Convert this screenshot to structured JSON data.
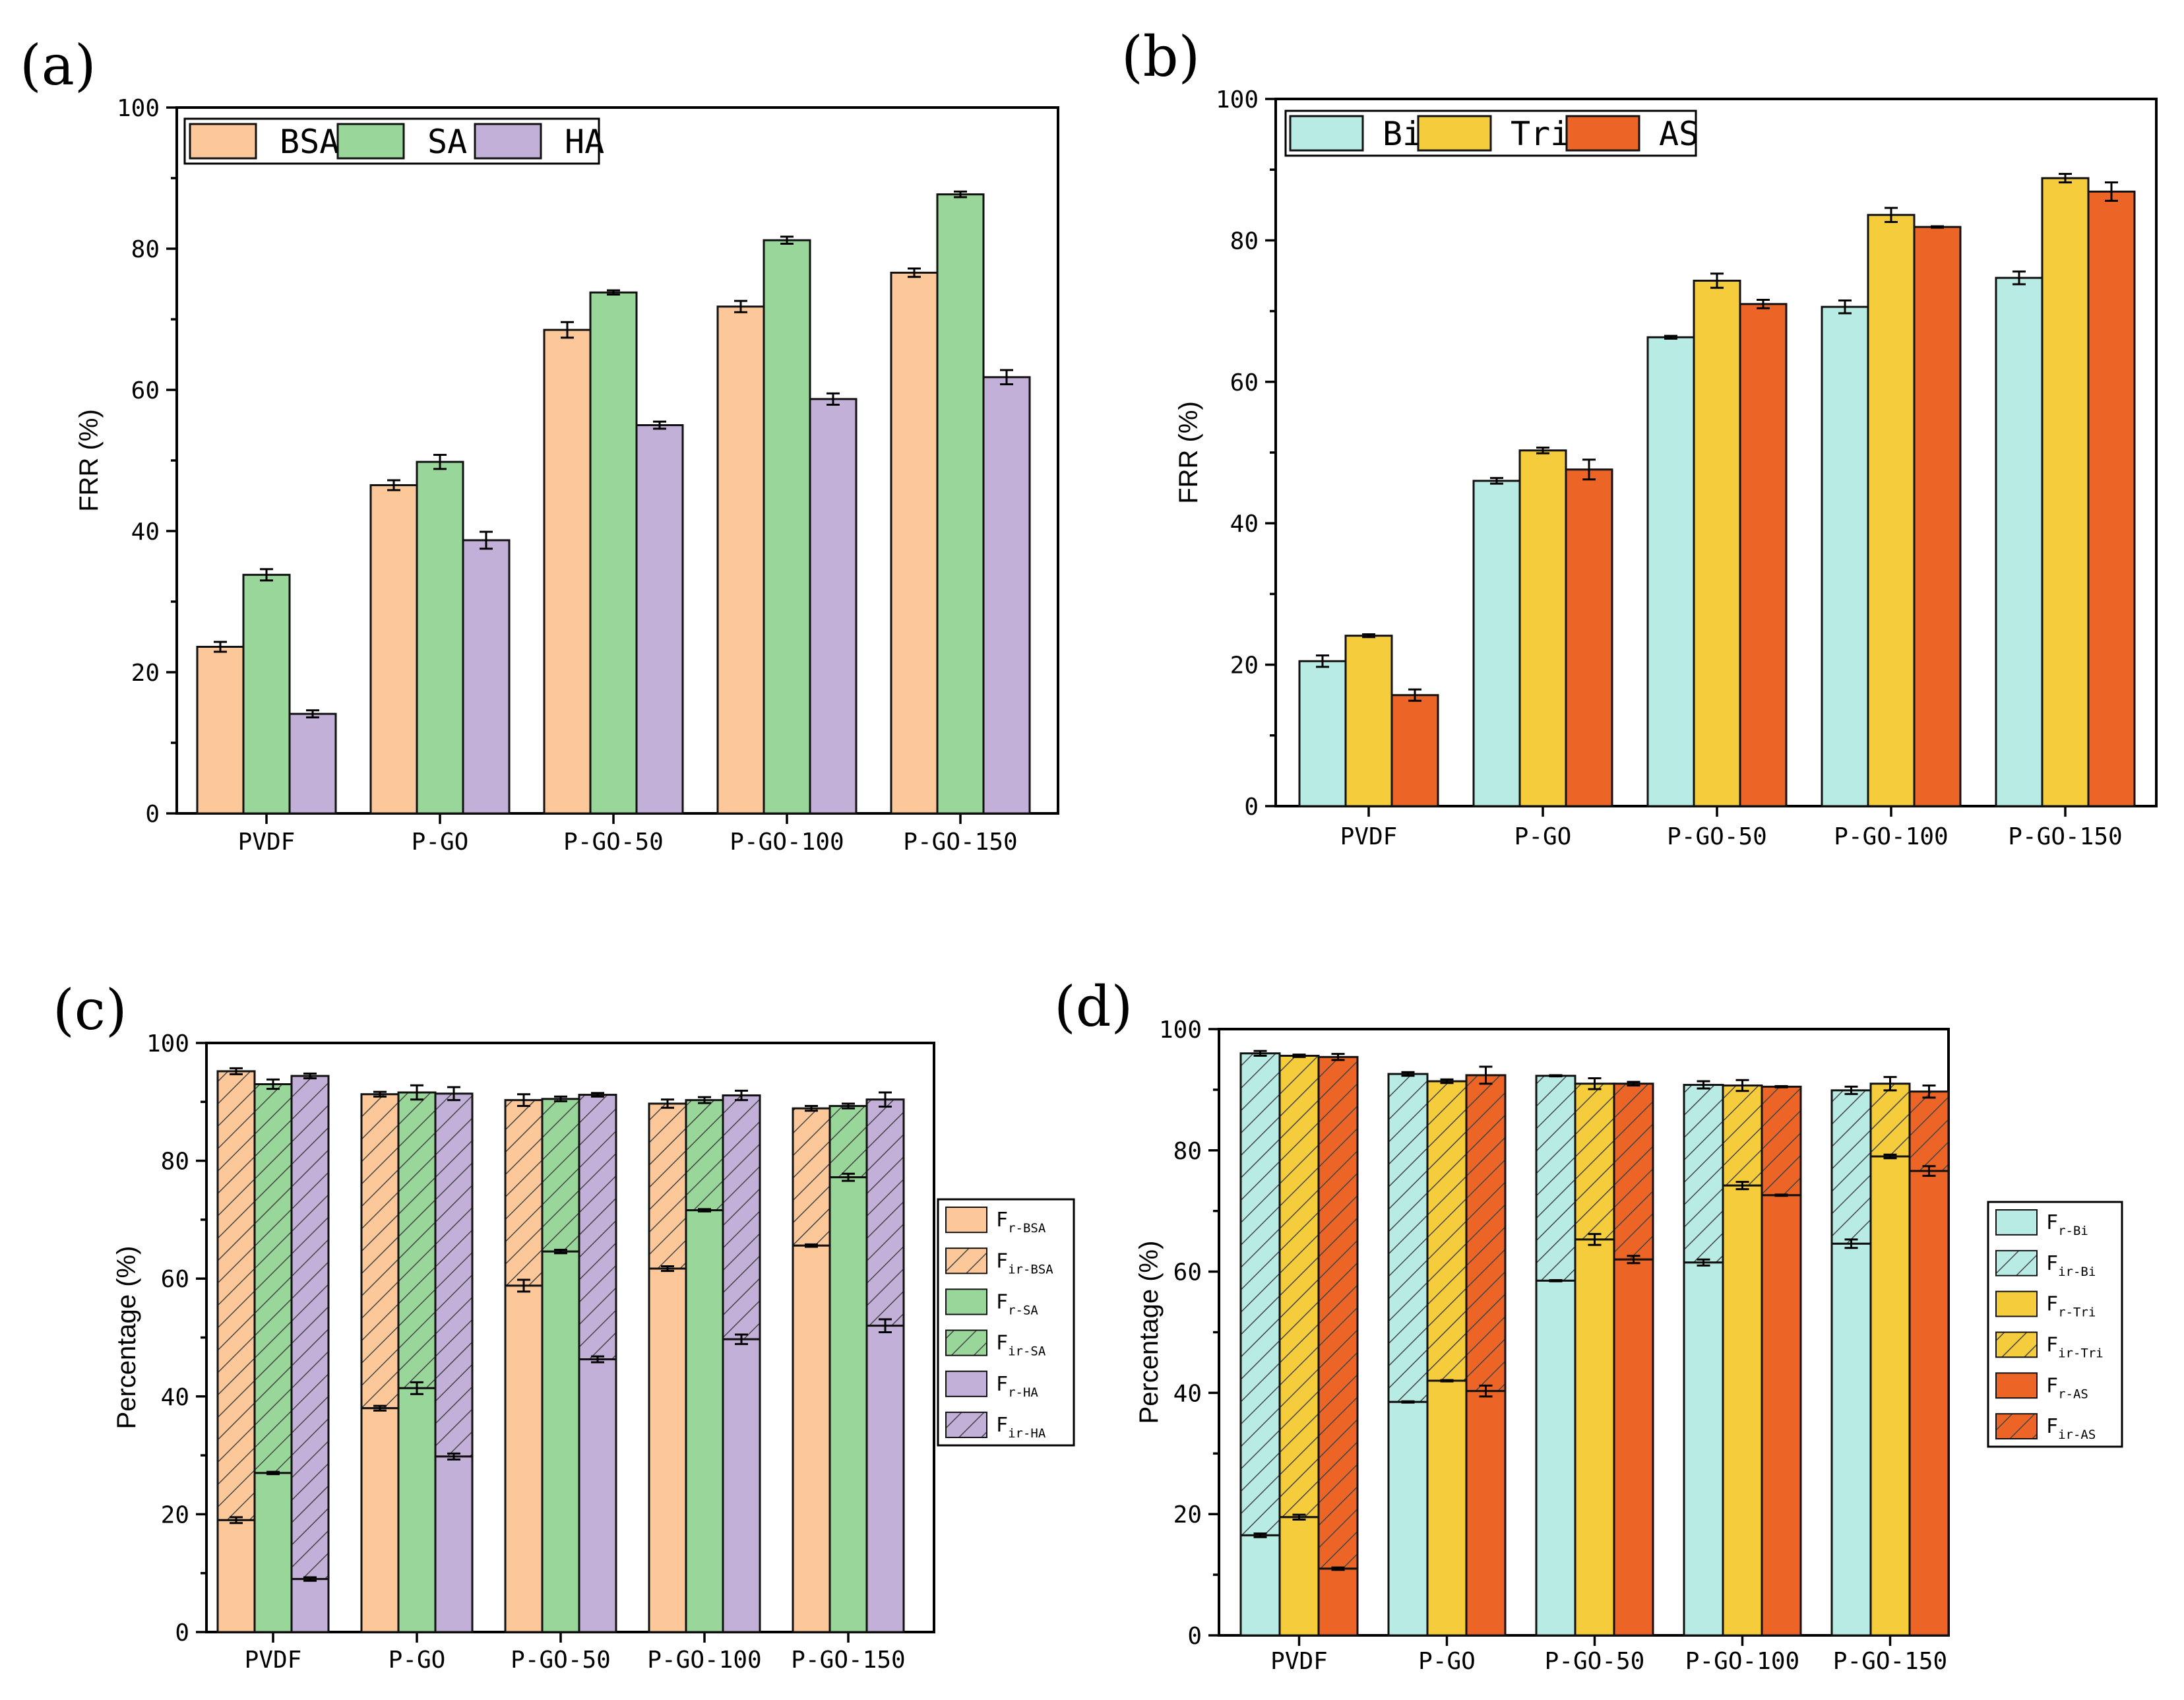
{
  "colors": {
    "BSA": "#fcc899",
    "SA": "#99d699",
    "HA": "#c3b0d8",
    "Bi": "#b8ebe3",
    "Tri": "#f5cd3c",
    "AS": "#ec6426"
  },
  "chart_data": [
    {
      "id": "a",
      "panel_label": "(a)",
      "type": "bar",
      "ylabel": "FRR (%)",
      "ylim": [
        0,
        100
      ],
      "yticks": [
        "0",
        "20",
        "40",
        "60",
        "80",
        "100"
      ],
      "categories": [
        "PVDF",
        "P-GO",
        "P-GO-50",
        "P-GO-100",
        "P-GO-150"
      ],
      "legend": [
        "BSA",
        "SA",
        "HA"
      ],
      "series": [
        {
          "name": "BSA",
          "color_key": "BSA",
          "values": [
            23.6,
            46.5,
            68.5,
            71.8,
            76.6
          ],
          "errors": [
            0.7,
            0.7,
            1.1,
            0.8,
            0.6
          ]
        },
        {
          "name": "SA",
          "color_key": "SA",
          "values": [
            33.8,
            49.8,
            73.8,
            81.2,
            87.7
          ],
          "errors": [
            0.8,
            1.0,
            0.3,
            0.5,
            0.4
          ]
        },
        {
          "name": "HA",
          "color_key": "HA",
          "values": [
            14.1,
            38.7,
            55.0,
            58.7,
            61.8
          ],
          "errors": [
            0.5,
            1.2,
            0.5,
            0.8,
            1.0
          ]
        }
      ]
    },
    {
      "id": "b",
      "panel_label": "(b)",
      "type": "bar",
      "ylabel": "FRR (%)",
      "ylim": [
        0,
        100
      ],
      "yticks": [
        "0",
        "20",
        "40",
        "60",
        "80",
        "100"
      ],
      "categories": [
        "PVDF",
        "P-GO",
        "P-GO-50",
        "P-GO-100",
        "P-GO-150"
      ],
      "legend": [
        "Bi",
        "Tri",
        "AS"
      ],
      "series": [
        {
          "name": "Bi",
          "color_key": "Bi",
          "values": [
            20.5,
            46.0,
            66.3,
            70.6,
            74.7
          ],
          "errors": [
            0.8,
            0.4,
            0.2,
            0.9,
            0.9
          ]
        },
        {
          "name": "Tri",
          "color_key": "Tri",
          "values": [
            24.1,
            50.3,
            74.3,
            83.6,
            88.8
          ],
          "errors": [
            0.2,
            0.4,
            1.0,
            1.0,
            0.6
          ]
        },
        {
          "name": "AS",
          "color_key": "AS",
          "values": [
            15.7,
            47.6,
            71.0,
            81.9,
            86.9
          ],
          "errors": [
            0.8,
            1.4,
            0.6,
            0.1,
            1.3
          ]
        }
      ]
    },
    {
      "id": "c",
      "panel_label": "(c)",
      "type": "stacked-bar",
      "ylabel": "Percentage (%)",
      "ylim": [
        0,
        100
      ],
      "yticks": [
        "0",
        "20",
        "40",
        "60",
        "80",
        "100"
      ],
      "categories": [
        "PVDF",
        "P-GO",
        "P-GO-50",
        "P-GO-100",
        "P-GO-150"
      ],
      "legend": [
        {
          "main": "F",
          "sub": "r-BSA",
          "color_key": "BSA",
          "hatch": false
        },
        {
          "main": "F",
          "sub": "ir-BSA",
          "color_key": "BSA",
          "hatch": true
        },
        {
          "main": "F",
          "sub": "r-SA",
          "color_key": "SA",
          "hatch": false
        },
        {
          "main": "F",
          "sub": "ir-SA",
          "color_key": "SA",
          "hatch": true
        },
        {
          "main": "F",
          "sub": "r-HA",
          "color_key": "HA",
          "hatch": false
        },
        {
          "main": "F",
          "sub": "ir-HA",
          "color_key": "HA",
          "hatch": true
        }
      ],
      "series": [
        {
          "name": "BSA",
          "color_key": "BSA",
          "fr": [
            19.0,
            38.0,
            58.8,
            61.7,
            65.6
          ],
          "fr_err": [
            0.5,
            0.4,
            1.0,
            0.4,
            0.2
          ],
          "total": [
            95.2,
            91.3,
            90.3,
            89.7,
            88.9
          ],
          "total_err": [
            0.5,
            0.4,
            1.0,
            0.7,
            0.4
          ]
        },
        {
          "name": "SA",
          "color_key": "SA",
          "fr": [
            27.0,
            41.4,
            64.6,
            71.6,
            77.2
          ],
          "fr_err": [
            0.2,
            1.0,
            0.3,
            0.2,
            0.6
          ],
          "total": [
            93.0,
            91.6,
            90.5,
            90.3,
            89.3
          ],
          "total_err": [
            0.8,
            1.2,
            0.4,
            0.5,
            0.4
          ]
        },
        {
          "name": "HA",
          "color_key": "HA",
          "fr": [
            9.0,
            29.8,
            46.3,
            49.7,
            52.0
          ],
          "fr_err": [
            0.3,
            0.5,
            0.5,
            0.8,
            1.1
          ],
          "total": [
            94.4,
            91.4,
            91.2,
            91.1,
            90.4
          ],
          "total_err": [
            0.4,
            1.1,
            0.3,
            0.8,
            1.2
          ]
        }
      ]
    },
    {
      "id": "d",
      "panel_label": "(d)",
      "type": "stacked-bar",
      "ylabel": "Percentage (%)",
      "ylim": [
        0,
        100
      ],
      "yticks": [
        "0",
        "20",
        "40",
        "60",
        "80",
        "100"
      ],
      "categories": [
        "PVDF",
        "P-GO",
        "P-GO-50",
        "P-GO-100",
        "P-GO-150"
      ],
      "legend": [
        {
          "main": "F",
          "sub": "r-Bi",
          "color_key": "Bi",
          "hatch": false
        },
        {
          "main": "F",
          "sub": "ir-Bi",
          "color_key": "Bi",
          "hatch": true
        },
        {
          "main": "F",
          "sub": "r-Tri",
          "color_key": "Tri",
          "hatch": false
        },
        {
          "main": "F",
          "sub": "ir-Tri",
          "color_key": "Tri",
          "hatch": true
        },
        {
          "main": "F",
          "sub": "r-AS",
          "color_key": "AS",
          "hatch": false
        },
        {
          "main": "F",
          "sub": "ir-AS",
          "color_key": "AS",
          "hatch": true
        }
      ],
      "series": [
        {
          "name": "Bi",
          "color_key": "Bi",
          "fr": [
            16.5,
            38.5,
            58.5,
            61.5,
            64.6
          ],
          "fr_err": [
            0.3,
            0.1,
            0.1,
            0.5,
            0.7
          ],
          "total": [
            96.0,
            92.6,
            92.3,
            90.8,
            89.9
          ],
          "total_err": [
            0.4,
            0.3,
            0.1,
            0.6,
            0.6
          ]
        },
        {
          "name": "Tri",
          "color_key": "Tri",
          "fr": [
            19.5,
            42.0,
            65.3,
            74.2,
            79.0
          ],
          "fr_err": [
            0.4,
            0.1,
            0.9,
            0.6,
            0.3
          ],
          "total": [
            95.6,
            91.4,
            91.0,
            90.7,
            91.0
          ],
          "total_err": [
            0.2,
            0.3,
            0.9,
            0.9,
            1.1
          ]
        },
        {
          "name": "AS",
          "color_key": "AS",
          "fr": [
            11.0,
            40.3,
            62.0,
            72.6,
            76.6
          ],
          "fr_err": [
            0.2,
            0.9,
            0.6,
            0.1,
            0.8
          ],
          "total": [
            95.4,
            92.4,
            91.0,
            90.5,
            89.7
          ],
          "total_err": [
            0.5,
            1.4,
            0.3,
            0.1,
            1.0
          ]
        }
      ]
    }
  ]
}
